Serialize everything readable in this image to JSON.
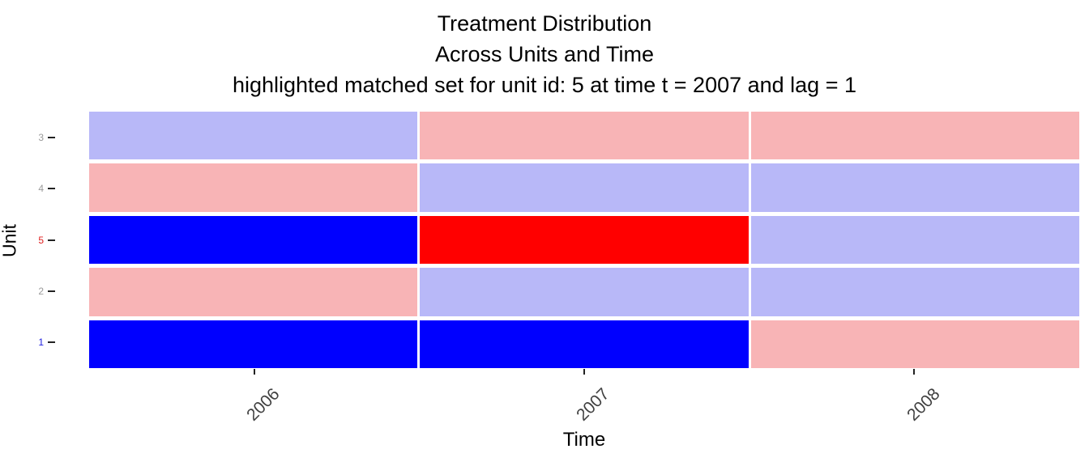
{
  "title": {
    "line1": "Treatment Distribution",
    "line2": "Across Units and Time",
    "line3": "highlighted matched set for unit id: 5 at time t = 2007 and lag = 1"
  },
  "axes": {
    "x_label": "Time",
    "y_label": "Unit"
  },
  "chart_data": {
    "type": "heatmap",
    "title": "Treatment Distribution Across Units and Time",
    "subtitle": "highlighted matched set for unit id: 5 at time t = 2007 and lag = 1",
    "x_categories": [
      "2006",
      "2007",
      "2008"
    ],
    "y_categories_top_to_bottom": [
      "3",
      "4",
      "5",
      "2",
      "1"
    ],
    "rows": [
      {
        "unit": "3",
        "values": [
          "light_blue",
          "light_pink",
          "light_pink"
        ],
        "label_color": "#9a9a9a"
      },
      {
        "unit": "4",
        "values": [
          "light_pink",
          "light_blue",
          "light_blue"
        ],
        "label_color": "#9a9a9a"
      },
      {
        "unit": "5",
        "values": [
          "dark_blue",
          "red",
          "light_blue"
        ],
        "label_color": "#e02020"
      },
      {
        "unit": "2",
        "values": [
          "light_pink",
          "light_blue",
          "light_blue"
        ],
        "label_color": "#9a9a9a"
      },
      {
        "unit": "1",
        "values": [
          "dark_blue",
          "dark_blue",
          "light_pink"
        ],
        "label_color": "#2020e0"
      }
    ],
    "palette": {
      "light_blue": "#b8b8f8",
      "light_pink": "#f8b4b6",
      "dark_blue": "#0000ff",
      "red": "#ff0000"
    },
    "layout": {
      "grid": "off",
      "legend": "none",
      "x_tick_angle": 45
    }
  }
}
